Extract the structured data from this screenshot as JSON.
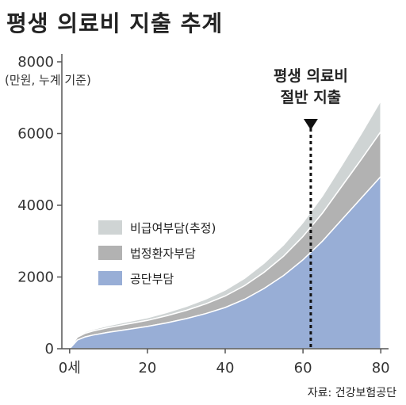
{
  "title": "평생 의료비 지출 추계",
  "chart_data": {
    "type": "area",
    "stacked": true,
    "title": "평생 의료비 지출 추계",
    "unit_label": "(만원, 누계 기준)",
    "x": [
      0,
      2,
      4,
      6,
      10,
      15,
      20,
      25,
      30,
      35,
      40,
      45,
      50,
      55,
      60,
      65,
      70,
      75,
      80
    ],
    "x_tick_labels": [
      "0세",
      "20",
      "40",
      "60",
      "80"
    ],
    "x_ticks": [
      0,
      20,
      40,
      60,
      80
    ],
    "y_ticks": [
      0,
      2000,
      4000,
      6000,
      8000
    ],
    "xlim": [
      -2,
      82
    ],
    "ylim": [
      0,
      8000
    ],
    "series": [
      {
        "name": "공단부담",
        "color": "#98aed6",
        "values": [
          0,
          240,
          330,
          380,
          460,
          540,
          620,
          720,
          840,
          980,
          1150,
          1380,
          1680,
          2040,
          2480,
          3000,
          3600,
          4200,
          4800
        ]
      },
      {
        "name": "법정환자부담",
        "color": "#b2b2b2",
        "values": [
          0,
          80,
          100,
          115,
          130,
          150,
          170,
          200,
          230,
          270,
          320,
          380,
          450,
          540,
          650,
          780,
          930,
          1080,
          1250
        ]
      },
      {
        "name": "비급여부담(추정)",
        "color": "#cfd4d4",
        "values": [
          0,
          30,
          40,
          45,
          55,
          65,
          75,
          90,
          110,
          135,
          165,
          205,
          255,
          315,
          390,
          480,
          590,
          720,
          870
        ]
      }
    ],
    "annotation": {
      "x": 62,
      "lines": [
        "평생 의료비",
        "절반 지출"
      ]
    },
    "source": "자료: 건강보험공단",
    "legend_position": "left-center",
    "grid": false
  }
}
